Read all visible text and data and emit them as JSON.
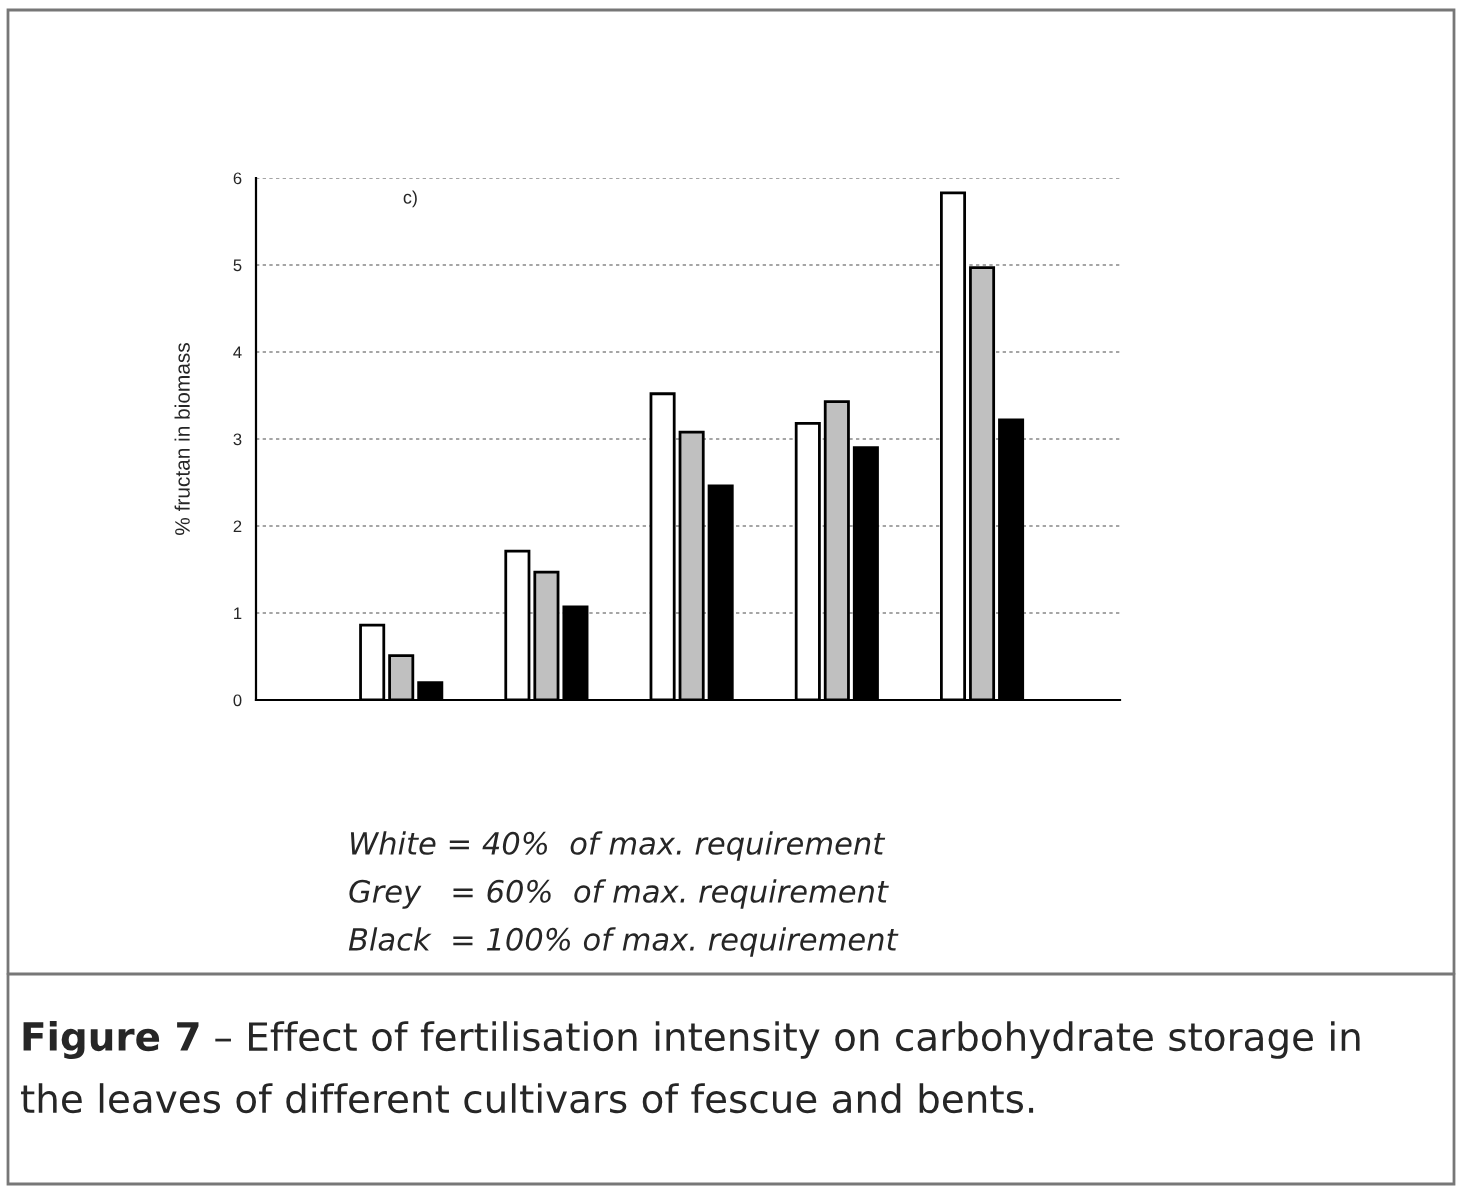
{
  "chart_data": {
    "type": "bar",
    "ylabel": "% fructan in biomass",
    "categories": [
      null,
      null,
      null,
      null,
      null
    ],
    "series": [
      {
        "color": "#ffffff",
        "values": [
          0.86,
          1.71,
          3.52,
          3.18,
          5.83
        ]
      },
      {
        "color": "#c0c0c0",
        "values": [
          0.51,
          1.47,
          3.08,
          3.43,
          4.97
        ]
      },
      {
        "color": "#000000",
        "values": [
          0.2,
          1.07,
          2.46,
          2.9,
          3.22
        ]
      }
    ],
    "ylim": [
      0,
      6
    ],
    "yticks": [
      0,
      1,
      2,
      3,
      4,
      5,
      6
    ],
    "grid": "y",
    "annotations": [
      "c)",
      "White = 40%  of max. requirement",
      "Grey   = 60%  of max. requirement",
      "Black  = 100% of max. requirement",
      "Figure 7",
      "– Effect of fertilisation intensity on carbohydrate storage in the leaves of different cultivars of fescue and bents."
    ]
  }
}
